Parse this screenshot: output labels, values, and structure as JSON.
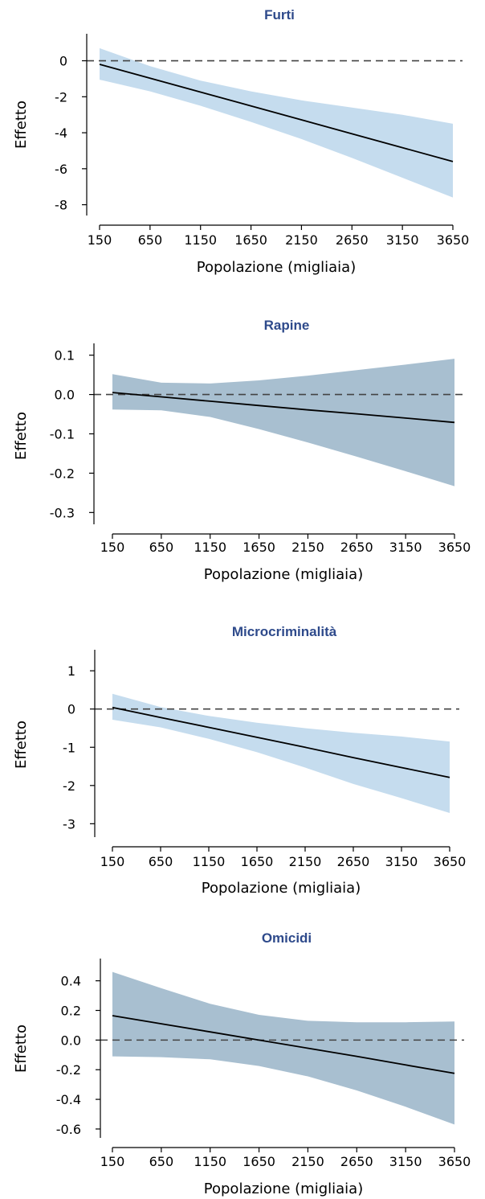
{
  "colors": {
    "title": "#2e4a8b",
    "band_light": "#c5dcee",
    "band_dark": "#a8bfd0",
    "line": "#000000",
    "zero": "#444444"
  },
  "chart_data": [
    {
      "type": "line",
      "title": "Furti",
      "xlabel": "Popolazione (migliaia)",
      "ylabel": "Effetto",
      "x": [
        150,
        650,
        1150,
        1650,
        2150,
        2650,
        3150,
        3650
      ],
      "series": [
        {
          "values": [
            -0.2,
            -0.97,
            -1.74,
            -2.51,
            -3.28,
            -4.06,
            -4.83,
            -5.6
          ]
        }
      ],
      "band_lower": [
        -1.05,
        -1.7,
        -2.5,
        -3.4,
        -4.35,
        -5.4,
        -6.5,
        -7.6
      ],
      "band_upper": [
        0.7,
        -0.3,
        -1.1,
        -1.7,
        -2.2,
        -2.6,
        -3.0,
        -3.5
      ],
      "xticks": [
        "150",
        "650",
        "1150",
        "1650",
        "2150",
        "2650",
        "3150",
        "3650"
      ],
      "yticks": [
        "0",
        "-2",
        "-4",
        "-6",
        "-8"
      ],
      "ytick_values": [
        0,
        -2,
        -4,
        -6,
        -8
      ],
      "ylim": [
        -8.6,
        1.5
      ],
      "band_color": "band_light",
      "grid": false
    },
    {
      "type": "line",
      "title": "Rapine",
      "xlabel": "Popolazione (migliaia)",
      "ylabel": "Effetto",
      "x": [
        150,
        650,
        1150,
        1650,
        2150,
        2650,
        3150,
        3650
      ],
      "series": [
        {
          "values": [
            0.005,
            -0.006,
            -0.017,
            -0.028,
            -0.039,
            -0.049,
            -0.06,
            -0.071
          ]
        }
      ],
      "band_lower": [
        -0.038,
        -0.04,
        -0.057,
        -0.088,
        -0.122,
        -0.158,
        -0.195,
        -0.233
      ],
      "band_upper": [
        0.052,
        0.03,
        0.028,
        0.036,
        0.048,
        0.062,
        0.076,
        0.091
      ],
      "xticks": [
        "150",
        "650",
        "1150",
        "1650",
        "2150",
        "2650",
        "3150",
        "3650"
      ],
      "yticks": [
        "0.1",
        "0.0",
        "-0.1",
        "-0.2",
        "-0.3"
      ],
      "ytick_values": [
        0.1,
        0.0,
        -0.1,
        -0.2,
        -0.3
      ],
      "ylim": [
        -0.33,
        0.13
      ],
      "band_color": "band_dark",
      "grid": false
    },
    {
      "type": "line",
      "title": "Microcriminalità",
      "xlabel": "Popolazione (migliaia)",
      "ylabel": "Effetto",
      "x": [
        150,
        650,
        1150,
        1650,
        2150,
        2650,
        3150,
        3650
      ],
      "series": [
        {
          "values": [
            0.04,
            -0.22,
            -0.48,
            -0.74,
            -1.0,
            -1.27,
            -1.53,
            -1.79
          ]
        }
      ],
      "band_lower": [
        -0.28,
        -0.48,
        -0.78,
        -1.13,
        -1.53,
        -1.96,
        -2.33,
        -2.72
      ],
      "band_upper": [
        0.4,
        0.05,
        -0.18,
        -0.36,
        -0.5,
        -0.62,
        -0.72,
        -0.85
      ],
      "xticks": [
        "150",
        "650",
        "1150",
        "1650",
        "2150",
        "2650",
        "3150",
        "3650"
      ],
      "yticks": [
        "1",
        "0",
        "-1",
        "-2",
        "-3"
      ],
      "ytick_values": [
        1,
        0,
        -1,
        -2,
        -3
      ],
      "ylim": [
        -3.35,
        1.55
      ],
      "band_color": "band_light",
      "grid": false
    },
    {
      "type": "line",
      "title": "Omicidi",
      "xlabel": "Popolazione (migliaia)",
      "ylabel": "Effetto",
      "x": [
        150,
        650,
        1150,
        1650,
        2150,
        2650,
        3150,
        3650
      ],
      "series": [
        {
          "values": [
            0.165,
            0.11,
            0.055,
            0.0,
            -0.055,
            -0.11,
            -0.168,
            -0.225
          ]
        }
      ],
      "band_lower": [
        -0.11,
        -0.115,
        -0.13,
        -0.175,
        -0.245,
        -0.34,
        -0.45,
        -0.57
      ],
      "band_upper": [
        0.46,
        0.35,
        0.245,
        0.17,
        0.13,
        0.12,
        0.12,
        0.125
      ],
      "xticks": [
        "150",
        "650",
        "1150",
        "1650",
        "2150",
        "2650",
        "3150",
        "3650"
      ],
      "yticks": [
        "0.4",
        "0.2",
        "0.0",
        "-0.2",
        "-0.4",
        "-0.6"
      ],
      "ytick_values": [
        0.4,
        0.2,
        0.0,
        -0.2,
        -0.4,
        -0.6
      ],
      "ylim": [
        -0.66,
        0.55
      ],
      "band_color": "band_dark",
      "grid": false
    }
  ]
}
